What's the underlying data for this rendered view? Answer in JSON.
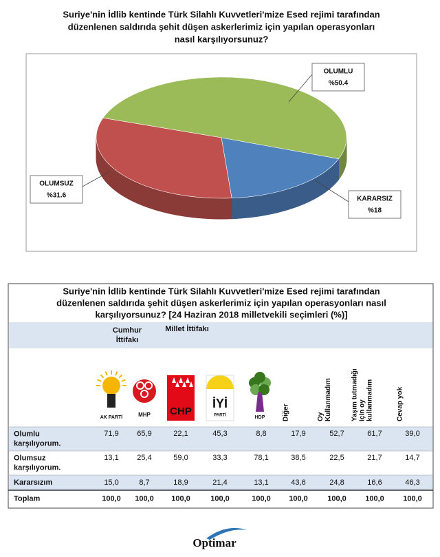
{
  "chart_data": {
    "type": "pie",
    "title": [
      "Suriye'nin İdlib kentinde Türk Silahlı Kuvvetleri'mize Esed rejimi tarafından",
      "düzenlenen saldırıda şehit düşen askerlerimiz için yapılan operasyonları",
      "nasıl karşılıyorsunuz?"
    ],
    "categories": [
      "OLUMLU",
      "KARARSIZ",
      "OLUMSUZ"
    ],
    "values": [
      50.4,
      18,
      31.6
    ],
    "value_labels": [
      "%50.4",
      "%18",
      "%31.6"
    ],
    "colors": [
      "#9bbb59",
      "#4f81bd",
      "#c0504d"
    ]
  },
  "table": {
    "title": [
      "Suriye'nin İdlib kentinde Türk Silahlı Kuvvetleri'mize Esed rejimi tarafından",
      "düzenlenen saldırıda şehit düşen askerlerimiz için yapılan operasyonları nasıl",
      "karşılıyorsunuz? [24 Haziran 2018 milletvekili seçimleri (%)]"
    ],
    "groups": [
      {
        "label": [
          "Cumhur",
          "İttifakı"
        ]
      },
      {
        "label": [
          "Millet İttifakı"
        ]
      }
    ],
    "columns": [
      {
        "label": [
          "AK PARTİ"
        ]
      },
      {
        "label": [
          "MHP"
        ]
      },
      {
        "label": [
          "CHP"
        ]
      },
      {
        "label": [
          "İYİ",
          "PARTİ"
        ]
      },
      {
        "label": [
          "HDP"
        ]
      },
      {
        "label": [
          "Diğer"
        ]
      },
      {
        "label": [
          "Oy",
          "Kullanmadım"
        ]
      },
      {
        "label": [
          "Yaşım tutmadığı",
          "için oy",
          "kullanmadım"
        ]
      },
      {
        "label": [
          "Cevap yok"
        ]
      }
    ],
    "rows": [
      {
        "label": [
          "Olumlu",
          "karşılıyorum."
        ],
        "cells": [
          "71,9",
          "65,9",
          "22,1",
          "45,3",
          "8,8",
          "17,9",
          "52,7",
          "61,7",
          "39,0"
        ]
      },
      {
        "label": [
          "Olumsuz",
          "karşılıyorum."
        ],
        "cells": [
          "13,1",
          "25,4",
          "59,0",
          "33,3",
          "78,1",
          "38,5",
          "22,5",
          "21,7",
          "14,7"
        ]
      },
      {
        "label": [
          "Kararsızım"
        ],
        "cells": [
          "15,0",
          "8,7",
          "18,9",
          "21,4",
          "13,1",
          "43,6",
          "24,8",
          "16,6",
          "46,3"
        ]
      },
      {
        "label": [
          "Toplam"
        ],
        "cells": [
          "100,0",
          "100,0",
          "100,0",
          "100,0",
          "100,0",
          "100,0",
          "100,0",
          "100,0",
          "100,0"
        ]
      }
    ]
  },
  "footer": {
    "logo": "Optimar"
  }
}
